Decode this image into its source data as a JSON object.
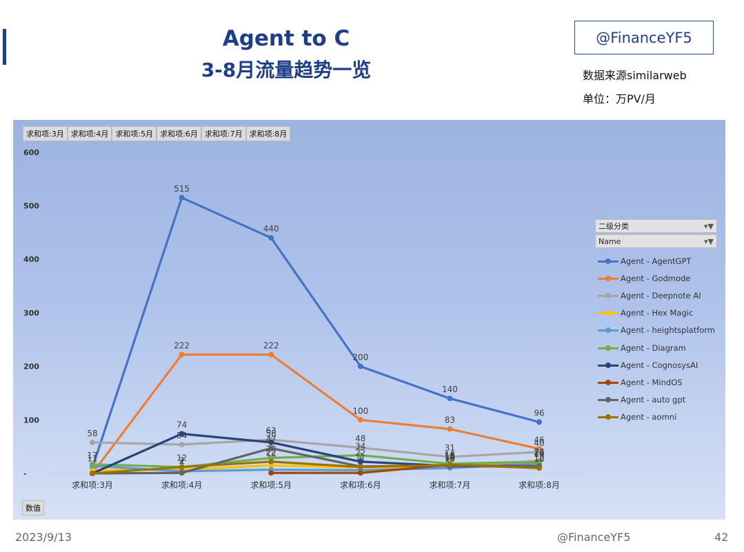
{
  "slide": {
    "title_line1": "Agent to C",
    "title_line2": "3-8月流量趋势一览",
    "brand_box": "@FinanceYF5",
    "source_note": "数据来源similarweb",
    "unit_note": "单位：万PV/月",
    "footer_date": "2023/9/13",
    "footer_brand": "@FinanceYF5",
    "footer_page": "42"
  },
  "pivot": {
    "field_tabs": [
      "求和项:3月",
      "求和项:4月",
      "求和项:5月",
      "求和项:6月",
      "求和项:7月",
      "求和项:8月"
    ],
    "value_button": "数值",
    "legend_header1": "二级分类",
    "legend_header2": "Name",
    "filter_icon": "▾▼"
  },
  "chart_data": {
    "type": "line",
    "categories": [
      "求和项:3月",
      "求和项:4月",
      "求和项:5月",
      "求和项:6月",
      "求和项:7月",
      "求和项:8月"
    ],
    "ylim": [
      0,
      600
    ],
    "yticks": [
      0,
      100,
      200,
      300,
      400,
      500,
      600
    ],
    "ytick_labels": [
      "-",
      "100",
      "200",
      "300",
      "400",
      "500",
      "600"
    ],
    "legend_position": "right",
    "grid": false,
    "series": [
      {
        "name": "Agent - AgentGPT",
        "color": "#4472c4",
        "values": [
          11,
          515,
          440,
          200,
          140,
          96
        ],
        "labels": [
          "11",
          "515",
          "440",
          "200",
          "140",
          "96"
        ]
      },
      {
        "name": "Agent - Godmode",
        "color": "#ed7d31",
        "values": [
          0,
          222,
          222,
          100,
          83,
          46
        ],
        "labels": [
          "",
          "222",
          "222",
          "100",
          "83",
          "46"
        ]
      },
      {
        "name": "Agent - Deepnote AI",
        "color": "#a5a5a5",
        "values": [
          58,
          54,
          63,
          48,
          31,
          40
        ],
        "labels": [
          "58",
          "54",
          "63",
          "48",
          "31",
          "40"
        ]
      },
      {
        "name": "Agent - Hex Magic",
        "color": "#ffc000",
        "values": [
          6,
          7,
          15,
          11,
          12,
          24
        ],
        "labels": [
          "",
          "7",
          "15",
          "11",
          "12",
          "24"
        ]
      },
      {
        "name": "Agent - heightsplatform",
        "color": "#5b9bd5",
        "values": [
          14,
          4,
          7,
          6,
          10,
          19
        ],
        "labels": [
          "",
          "4",
          "7",
          "6",
          "10",
          "19"
        ]
      },
      {
        "name": "Agent - Diagram",
        "color": "#70ad47",
        "values": [
          17,
          12,
          29,
          34,
          18,
          22
        ],
        "labels": [
          "17",
          "12",
          "29",
          "34",
          "18",
          "22"
        ]
      },
      {
        "name": "Agent - CognosysAI",
        "color": "#264478",
        "values": [
          0,
          74,
          58,
          22,
          14,
          12
        ],
        "labels": [
          "",
          "74",
          "58",
          "22",
          "14",
          "12"
        ]
      },
      {
        "name": "Agent - MindOS",
        "color": "#9e480e",
        "values": [
          null,
          null,
          1,
          1,
          16,
          12
        ],
        "labels": [
          "",
          "",
          "",
          "",
          "",
          ""
        ]
      },
      {
        "name": "Agent - auto gpt",
        "color": "#636363",
        "values": [
          0,
          1,
          47,
          13,
          15,
          14
        ],
        "labels": [
          "",
          "",
          "47",
          "",
          "15",
          ""
        ]
      },
      {
        "name": "Agent - aomni",
        "color": "#997300",
        "values": [
          0,
          12,
          22,
          12,
          16,
          10
        ],
        "labels": [
          "",
          "",
          "22",
          "",
          "16",
          "10"
        ]
      }
    ]
  }
}
